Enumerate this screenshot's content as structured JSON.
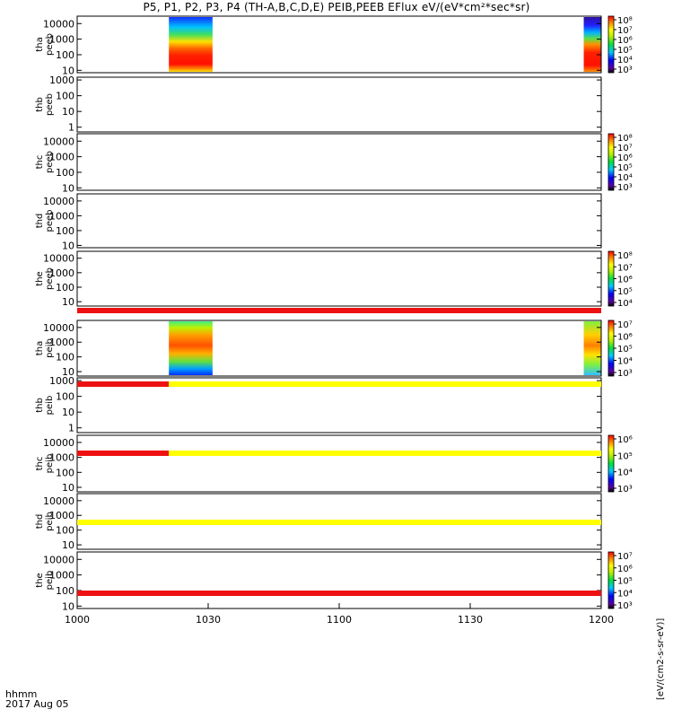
{
  "title": "P5, P1, P2, P3, P4 (TH-A,B,C,D,E) PEIB,PEEB EFlux eV/(eV*cm²*sec*sr)",
  "footer": {
    "label": "hhmm",
    "date": "2017 Aug 05"
  },
  "colorbar_label": "[eV/(cm2-s-sr-eV)]",
  "colors": {
    "red_bar": "#ee1111",
    "yellow_bar": "#ffff00",
    "axis": "#000000"
  },
  "chart_data": {
    "type": "heatmap",
    "x_axis": {
      "label": "hhmm",
      "range_minutes": [
        600,
        720
      ],
      "ticks": [
        {
          "value": 600,
          "label": "1000"
        },
        {
          "value": 630,
          "label": "1030"
        },
        {
          "value": 660,
          "label": "1100"
        },
        {
          "value": 690,
          "label": "1130"
        },
        {
          "value": 720,
          "label": "1200"
        }
      ]
    },
    "panels": [
      {
        "probe": "tha",
        "product": "peeb",
        "ylabels": [
          "10000",
          "1000",
          "100",
          "10"
        ],
        "ylim": [
          7,
          30000
        ],
        "colorbar": [
          "10⁸",
          "10⁷",
          "10⁶",
          "10⁵",
          "10⁴",
          "10³"
        ],
        "data_intervals": [
          {
            "start": 621,
            "end": 631,
            "kind": "eeb"
          },
          {
            "start": 716,
            "end": 720,
            "kind": "eeb"
          }
        ]
      },
      {
        "probe": "thb",
        "product": "peeb",
        "ylabels": [
          "1000",
          "100",
          "10",
          "1"
        ],
        "ylim": [
          0.5,
          1500
        ],
        "colorbar": [],
        "data_intervals": []
      },
      {
        "probe": "thc",
        "product": "peeb",
        "ylabels": [
          "10000",
          "1000",
          "100",
          "10"
        ],
        "ylim": [
          7,
          30000
        ],
        "colorbar": [
          "10⁸",
          "10⁷",
          "10⁶",
          "10⁵",
          "10⁴",
          "10³"
        ],
        "data_intervals": []
      },
      {
        "probe": "thd",
        "product": "peeb",
        "ylabels": [
          "10000",
          "1000",
          "100",
          "10"
        ],
        "ylim": [
          7,
          30000
        ],
        "colorbar": [],
        "data_intervals": []
      },
      {
        "probe": "the",
        "product": "peeb",
        "ylabels": [
          "10000",
          "1000",
          "100",
          "10"
        ],
        "ylim": [
          5,
          30000
        ],
        "colorbar": [
          "10⁸",
          "10⁷",
          "10⁶",
          "10⁵",
          "10⁴"
        ],
        "data_intervals": []
      },
      {
        "probe": "tha",
        "product": "peib",
        "ylabels": [
          "10000",
          "1000",
          "100",
          "10"
        ],
        "ylim": [
          5,
          30000
        ],
        "colorbar": [
          "10⁷",
          "10⁶",
          "10⁵",
          "10⁴",
          "10³"
        ],
        "data_intervals": [
          {
            "start": 621,
            "end": 631,
            "kind": "eib"
          },
          {
            "start": 716,
            "end": 720,
            "kind": "eib"
          }
        ]
      },
      {
        "probe": "thb",
        "product": "peib",
        "ylabels": [
          "1000",
          "100",
          "10",
          "1"
        ],
        "ylim": [
          0.5,
          1500
        ],
        "colorbar": [],
        "data_intervals": []
      },
      {
        "probe": "thc",
        "product": "peib",
        "ylabels": [
          "10000",
          "1000",
          "100",
          "10"
        ],
        "ylim": [
          5,
          30000
        ],
        "colorbar": [
          "10⁶",
          "10⁵",
          "10⁴",
          "10³"
        ],
        "data_intervals": []
      },
      {
        "probe": "thd",
        "product": "peib",
        "ylabels": [
          "10000",
          "1000",
          "100",
          "10"
        ],
        "ylim": [
          5,
          30000
        ],
        "colorbar": [],
        "data_intervals": []
      },
      {
        "probe": "the",
        "product": "peib",
        "ylabels": [
          "10000",
          "1000",
          "100",
          "10"
        ],
        "ylim": [
          7,
          30000
        ],
        "colorbar": [
          "10⁷",
          "10⁶",
          "10⁵",
          "10⁴",
          "10³"
        ],
        "data_intervals": []
      }
    ],
    "status_bars": [
      {
        "after_panel": 4,
        "segments": [
          {
            "start": 600,
            "end": 720,
            "color": "red"
          }
        ]
      },
      {
        "after_panel": 5,
        "segments": [
          {
            "start": 600,
            "end": 621,
            "color": "red"
          },
          {
            "start": 621,
            "end": 720,
            "color": "yellow"
          }
        ]
      },
      {
        "after_panel": 6,
        "segments": [
          {
            "start": 600,
            "end": 621,
            "color": "red"
          },
          {
            "start": 621,
            "end": 720,
            "color": "yellow"
          }
        ]
      },
      {
        "after_panel": 7,
        "segments": [
          {
            "start": 600,
            "end": 720,
            "color": "yellow"
          }
        ]
      },
      {
        "after_panel": 8,
        "segments": [
          {
            "start": 600,
            "end": 720,
            "color": "red"
          }
        ]
      }
    ]
  }
}
